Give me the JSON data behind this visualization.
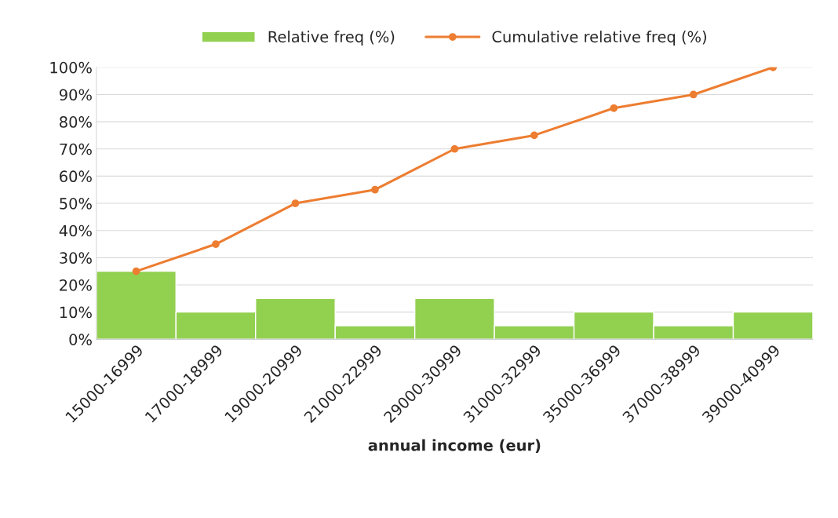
{
  "chart_data": {
    "type": "bar",
    "xlabel": "annual income (eur)",
    "categories": [
      "15000-16999",
      "17000-18999",
      "19000-20999",
      "21000-22999",
      "29000-30999",
      "31000-32999",
      "35000-36999",
      "37000-38999",
      "39000-40999"
    ],
    "series": [
      {
        "name": "Relative freq (%)",
        "color": "#92d050",
        "values": [
          25,
          10,
          15,
          5,
          15,
          5,
          10,
          5,
          10
        ]
      },
      {
        "name": "Cumulative relative freq (%)",
        "type": "line",
        "color": "#ed7d31",
        "marker": "circle",
        "values": [
          25,
          35,
          50,
          55,
          70,
          75,
          85,
          90,
          100
        ]
      }
    ],
    "ylim": [
      0,
      100
    ],
    "yticks": [
      {
        "value": 0,
        "label": "0%"
      },
      {
        "value": 10,
        "label": "10%"
      },
      {
        "value": 20,
        "label": "20%"
      },
      {
        "value": 30,
        "label": "30%"
      },
      {
        "value": 40,
        "label": "40%"
      },
      {
        "value": 50,
        "label": "50%"
      },
      {
        "value": 60,
        "label": "60%"
      },
      {
        "value": 70,
        "label": "70%"
      },
      {
        "value": 80,
        "label": "80%"
      },
      {
        "value": 90,
        "label": "90%"
      },
      {
        "value": 100,
        "label": "100%"
      }
    ],
    "grid": "y",
    "legend": "top"
  }
}
